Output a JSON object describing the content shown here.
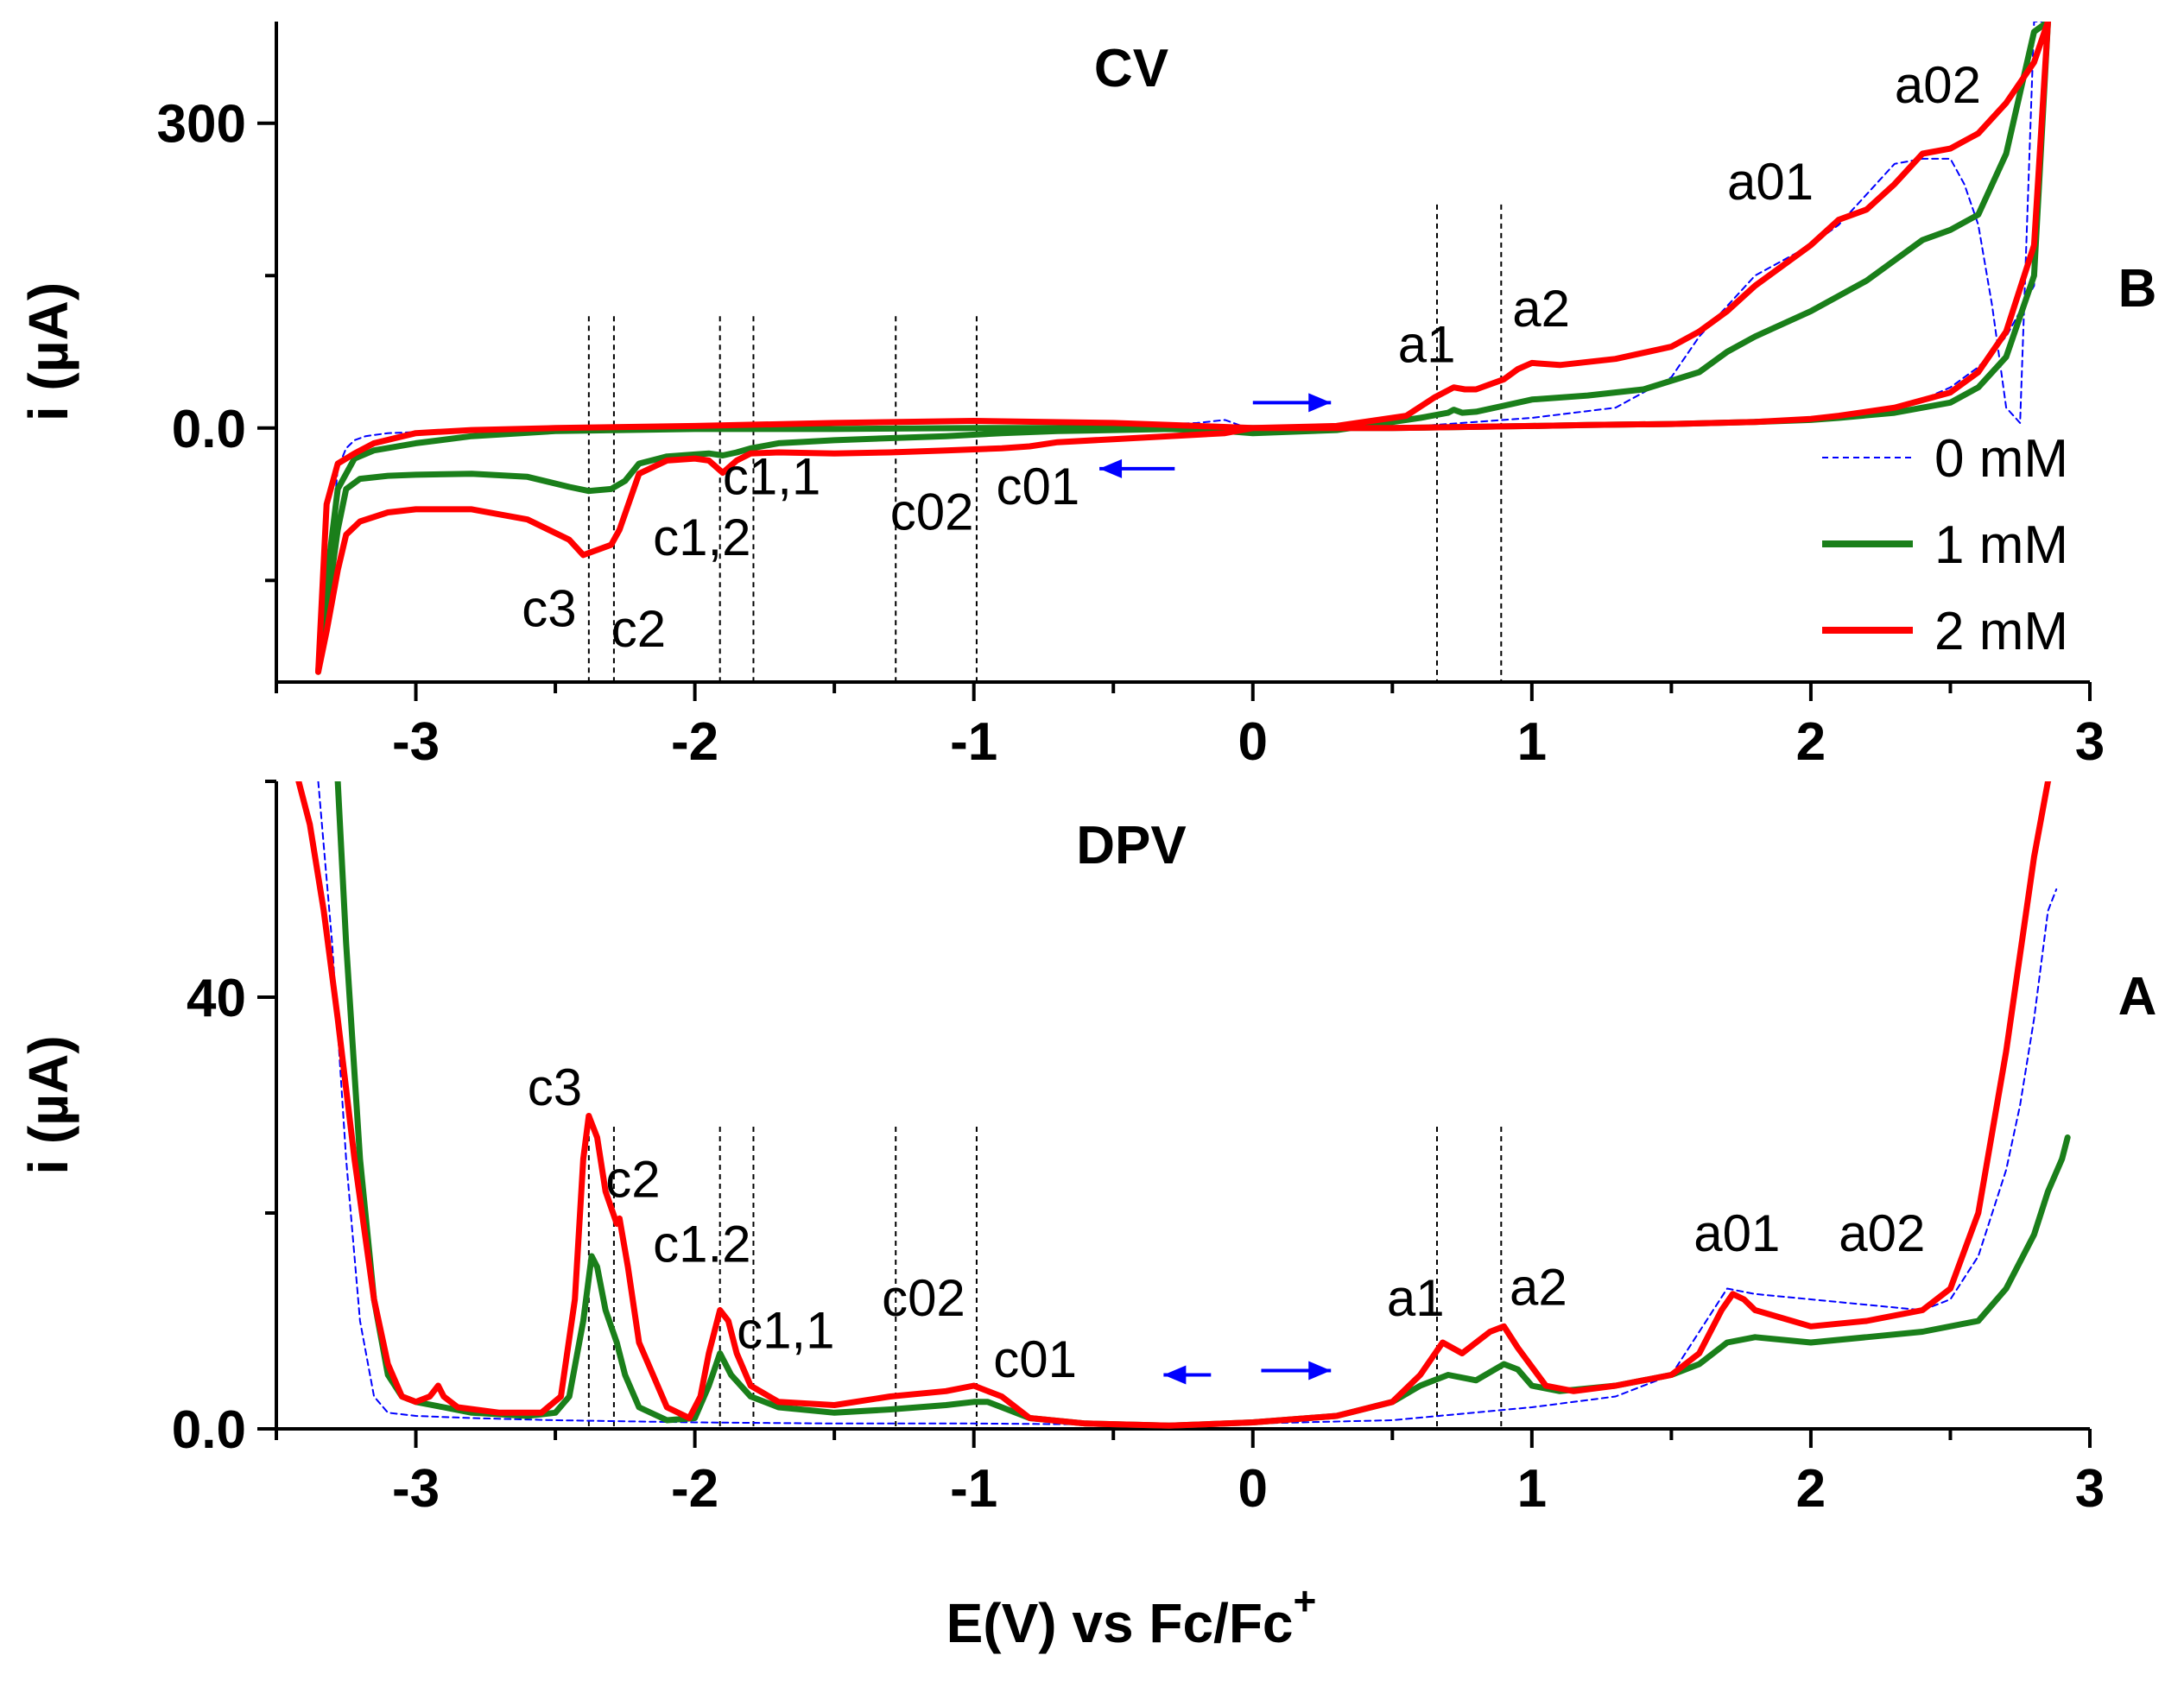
{
  "chart_data": [
    {
      "type": "line",
      "panel_title": "CV",
      "panel_letter": "B",
      "xlabel": "E(V) vs Fc/Fc",
      "xlabel_sup": "+",
      "ylabel": "i (µA)",
      "xlim": [
        -3.5,
        3.0
      ],
      "ylim": [
        -250,
        400
      ],
      "x_ticks": [
        -3,
        -2,
        -1,
        0,
        1,
        2,
        3
      ],
      "x_tick_labels": [
        "-3",
        "-2",
        "-1",
        "0",
        "1",
        "2",
        "3"
      ],
      "y_ticks": [
        0,
        300
      ],
      "y_tick_labels": [
        "0.0",
        "300"
      ],
      "grid": false,
      "legend": {
        "placement": "right",
        "entries": [
          {
            "name": "0 mM",
            "color": "#0000ff",
            "style": "dashed"
          },
          {
            "name": "1 mM",
            "color": "#1a7f1a",
            "style": "solid"
          },
          {
            "name": "2 mM",
            "color": "#ff0000",
            "style": "solid"
          }
        ]
      },
      "annotations": [
        {
          "text": "a02",
          "x": 2.3,
          "y": 320
        },
        {
          "text": "a01",
          "x": 1.7,
          "y": 225
        },
        {
          "text": "a2",
          "x": 0.93,
          "y": 100
        },
        {
          "text": "a1",
          "x": 0.52,
          "y": 65
        },
        {
          "text": "c1,1",
          "x": -1.9,
          "y": -65
        },
        {
          "text": "c02",
          "x": -1.3,
          "y": -100
        },
        {
          "text": "c01",
          "x": -0.92,
          "y": -75
        },
        {
          "text": "c1,2",
          "x": -2.15,
          "y": -125
        },
        {
          "text": "c3",
          "x": -2.62,
          "y": -195
        },
        {
          "text": "c2",
          "x": -2.3,
          "y": -215
        }
      ],
      "series": [
        {
          "name": "0 mM",
          "color": "#0000ff",
          "style": "dashed",
          "x": [
            -3.35,
            -3.33,
            -3.3,
            -3.28,
            -3.25,
            -3.22,
            -3.18,
            -3.1,
            -3.0,
            -2.8,
            -2.5,
            -2.0,
            -1.5,
            -1.0,
            -0.5,
            -0.2,
            -0.1,
            0.0,
            0.5,
            1.0,
            1.3,
            1.5,
            1.6,
            1.7,
            1.8,
            1.9,
            2.0,
            2.1,
            2.2,
            2.3,
            2.4,
            2.5,
            2.55,
            2.6,
            2.65,
            2.7,
            2.75,
            2.8,
            2.85,
            2.8,
            2.7,
            2.6,
            2.5,
            2.4,
            2.3,
            2.2,
            2.1,
            2.0,
            1.8,
            1.6,
            1.4,
            1.2,
            1.0,
            0.8,
            0.6,
            0.4,
            0.2,
            0.0,
            -0.1
          ],
          "y": [
            -240,
            -200,
            -100,
            -40,
            -20,
            -12,
            -8,
            -5,
            -4,
            -3,
            -3,
            -2,
            -1,
            0,
            2,
            5,
            8,
            -2,
            0,
            10,
            20,
            50,
            90,
            120,
            150,
            165,
            180,
            200,
            230,
            260,
            265,
            265,
            240,
            200,
            120,
            20,
            5,
            400,
            400,
            140,
            90,
            60,
            40,
            28,
            20,
            15,
            12,
            10,
            8,
            6,
            5,
            4,
            3,
            2,
            2,
            1,
            1,
            0,
            0
          ]
        },
        {
          "name": "1 mM",
          "color": "#1a7f1a",
          "style": "solid",
          "x": [
            -3.35,
            -3.32,
            -3.28,
            -3.25,
            -3.2,
            -3.1,
            -3.0,
            -2.8,
            -2.6,
            -2.45,
            -2.38,
            -2.3,
            -2.25,
            -2.2,
            -2.1,
            -2.0,
            -1.95,
            -1.9,
            -1.85,
            -1.8,
            -1.7,
            -1.5,
            -1.3,
            -1.1,
            -0.9,
            -0.7,
            -0.5,
            -0.3,
            -0.1,
            -0.1,
            0.0,
            0.3,
            0.6,
            0.7,
            0.72,
            0.75,
            0.8,
            0.9,
            1.0,
            1.2,
            1.4,
            1.6,
            1.7,
            1.8,
            2.0,
            2.2,
            2.3,
            2.4,
            2.5,
            2.6,
            2.7,
            2.75,
            2.8,
            2.85,
            2.8,
            2.7,
            2.6,
            2.5,
            2.3,
            2.1,
            2.0,
            1.8,
            1.5,
            1.2,
            1.0,
            0.5,
            0.0,
            -0.2,
            -0.5,
            -1.0,
            -1.5,
            -2.0,
            -2.5,
            -2.8,
            -3.0,
            -3.15,
            -3.22,
            -3.28,
            -3.32,
            -3.35
          ],
          "y": [
            -240,
            -180,
            -100,
            -60,
            -50,
            -47,
            -46,
            -45,
            -48,
            -58,
            -62,
            -60,
            -52,
            -35,
            -28,
            -26,
            -25,
            -27,
            -24,
            -20,
            -15,
            -12,
            -10,
            -8,
            -5,
            -3,
            -2,
            -1,
            -3,
            -3,
            -5,
            -2,
            10,
            15,
            18,
            15,
            16,
            22,
            28,
            32,
            38,
            55,
            75,
            90,
            115,
            145,
            165,
            185,
            195,
            210,
            270,
            330,
            390,
            400,
            150,
            70,
            40,
            25,
            15,
            10,
            8,
            6,
            4,
            3,
            2,
            0,
            0,
            0,
            0,
            0,
            -1,
            -1,
            -3,
            -8,
            -15,
            -22,
            -30,
            -60,
            -150,
            -240
          ]
        },
        {
          "name": "2 mM",
          "color": "#ff0000",
          "style": "solid",
          "x": [
            -3.35,
            -3.32,
            -3.28,
            -3.25,
            -3.2,
            -3.1,
            -3.0,
            -2.8,
            -2.6,
            -2.45,
            -2.4,
            -2.35,
            -2.3,
            -2.27,
            -2.2,
            -2.1,
            -2.0,
            -1.95,
            -1.9,
            -1.85,
            -1.8,
            -1.7,
            -1.5,
            -1.3,
            -1.1,
            -0.9,
            -0.8,
            -0.7,
            -0.5,
            -0.3,
            -0.1,
            0.0,
            0.3,
            0.55,
            0.65,
            0.72,
            0.76,
            0.8,
            0.9,
            0.95,
            1.0,
            1.1,
            1.3,
            1.5,
            1.6,
            1.7,
            1.8,
            2.0,
            2.1,
            2.2,
            2.3,
            2.4,
            2.5,
            2.6,
            2.7,
            2.8,
            2.85,
            2.8,
            2.7,
            2.6,
            2.5,
            2.3,
            2.1,
            2.0,
            1.8,
            1.5,
            1.2,
            1.0,
            0.5,
            0.0,
            -0.2,
            -0.5,
            -1.0,
            -1.5,
            -2.0,
            -2.5,
            -2.8,
            -3.0,
            -3.15,
            -3.22,
            -3.28,
            -3.32,
            -3.35
          ],
          "y": [
            -240,
            -200,
            -140,
            -105,
            -92,
            -83,
            -80,
            -80,
            -90,
            -110,
            -125,
            -120,
            -115,
            -100,
            -45,
            -32,
            -30,
            -32,
            -44,
            -32,
            -25,
            -24,
            -25,
            -24,
            -22,
            -20,
            -18,
            -14,
            -11,
            -8,
            -5,
            0,
            2,
            12,
            30,
            40,
            38,
            38,
            48,
            58,
            64,
            62,
            68,
            80,
            95,
            115,
            140,
            180,
            205,
            215,
            240,
            270,
            275,
            290,
            320,
            360,
            400,
            180,
            95,
            55,
            35,
            20,
            12,
            9,
            6,
            4,
            3,
            2,
            0,
            0,
            2,
            5,
            7,
            5,
            2,
            0,
            -2,
            -5,
            -15,
            -25,
            -35,
            -75,
            -240
          ]
        }
      ],
      "arrows": [
        {
          "from": [
            0.0,
            25
          ],
          "to": [
            0.28,
            25
          ],
          "color": "#0000ff"
        },
        {
          "from": [
            -0.28,
            -40
          ],
          "to": [
            -0.55,
            -40
          ],
          "color": "#0000ff"
        }
      ],
      "vlines_x": [
        -2.38,
        -2.29,
        -1.91,
        -1.79,
        -1.28,
        -0.99,
        0.66,
        0.89
      ]
    },
    {
      "type": "line",
      "panel_title": "DPV",
      "panel_letter": "A",
      "xlabel": "E(V) vs Fc/Fc",
      "xlabel_sup": "+",
      "ylabel": "i (µA)",
      "xlim": [
        -3.5,
        3.0
      ],
      "ylim": [
        0,
        60
      ],
      "x_ticks": [
        -3,
        -2,
        -1,
        0,
        1,
        2,
        3
      ],
      "x_tick_labels": [
        "-3",
        "-2",
        "-1",
        "0",
        "1",
        "2",
        "3"
      ],
      "y_ticks": [
        0,
        40
      ],
      "y_tick_labels": [
        "0.0",
        "40"
      ],
      "grid": false,
      "annotations": [
        {
          "text": "c3",
          "x": -2.6,
          "y": 30
        },
        {
          "text": "c2",
          "x": -2.32,
          "y": 21.5
        },
        {
          "text": "c1.2",
          "x": -2.15,
          "y": 15.5
        },
        {
          "text": "c1,1",
          "x": -1.85,
          "y": 7.5
        },
        {
          "text": "c02",
          "x": -1.33,
          "y": 10.5
        },
        {
          "text": "c01",
          "x": -0.93,
          "y": 4.8
        },
        {
          "text": "a1",
          "x": 0.48,
          "y": 10.5
        },
        {
          "text": "a2",
          "x": 0.92,
          "y": 11.5
        },
        {
          "text": "a01",
          "x": 1.58,
          "y": 16.5
        },
        {
          "text": "a02",
          "x": 2.1,
          "y": 16.5
        }
      ],
      "series": [
        {
          "name": "0 mM",
          "color": "#0000ff",
          "style": "dashed",
          "x": [
            -3.35,
            -3.3,
            -3.25,
            -3.2,
            -3.15,
            -3.1,
            -3.0,
            -2.8,
            -2.5,
            -2.0,
            -1.5,
            -1.0,
            -0.5,
            0.0,
            0.5,
            1.0,
            1.3,
            1.5,
            1.6,
            1.7,
            1.8,
            2.0,
            2.2,
            2.4,
            2.5,
            2.6,
            2.7,
            2.75,
            2.8,
            2.85,
            2.88
          ],
          "y": [
            60,
            45,
            25,
            10,
            3,
            1.5,
            1.2,
            1.0,
            0.8,
            0.6,
            0.5,
            0.5,
            0.4,
            0.5,
            0.8,
            2,
            3,
            5,
            9,
            13,
            12.5,
            12,
            11.5,
            11,
            12,
            16,
            24,
            30,
            38,
            48,
            50
          ]
        },
        {
          "name": "1 mM",
          "color": "#1a7f1a",
          "style": "solid",
          "x": [
            -3.28,
            -3.25,
            -3.2,
            -3.15,
            -3.1,
            -3.05,
            -3.0,
            -2.9,
            -2.8,
            -2.6,
            -2.5,
            -2.45,
            -2.4,
            -2.37,
            -2.35,
            -2.32,
            -2.28,
            -2.25,
            -2.2,
            -2.1,
            -2.0,
            -1.95,
            -1.91,
            -1.87,
            -1.8,
            -1.7,
            -1.5,
            -1.3,
            -1.1,
            -1.0,
            -0.95,
            -0.9,
            -0.8,
            -0.6,
            -0.3,
            0.0,
            0.3,
            0.5,
            0.6,
            0.7,
            0.8,
            0.9,
            0.95,
            1.0,
            1.1,
            1.3,
            1.5,
            1.6,
            1.7,
            1.8,
            2.0,
            2.2,
            2.4,
            2.6,
            2.7,
            2.8,
            2.85,
            2.9,
            2.92
          ],
          "y": [
            60,
            45,
            25,
            12,
            5,
            3,
            2.5,
            2,
            1.5,
            1.2,
            1.5,
            3,
            10,
            16,
            15,
            11,
            8,
            5,
            2,
            0.8,
            1,
            4,
            7,
            5,
            3,
            2,
            1.5,
            1.8,
            2.2,
            2.5,
            2.5,
            2,
            1,
            0.5,
            0.3,
            0.6,
            1.2,
            2.5,
            4,
            5,
            4.5,
            6,
            5.5,
            4,
            3.5,
            4,
            5,
            6,
            8,
            8.5,
            8,
            8.5,
            9,
            10,
            13,
            18,
            22,
            25,
            27
          ]
        },
        {
          "name": "2 mM",
          "color": "#ff0000",
          "style": "solid",
          "x": [
            -3.42,
            -3.38,
            -3.33,
            -3.28,
            -3.22,
            -3.15,
            -3.1,
            -3.05,
            -3.0,
            -2.95,
            -2.92,
            -2.9,
            -2.85,
            -2.7,
            -2.55,
            -2.48,
            -2.43,
            -2.4,
            -2.38,
            -2.35,
            -2.32,
            -2.28,
            -2.27,
            -2.24,
            -2.2,
            -2.1,
            -2.02,
            -1.98,
            -1.95,
            -1.91,
            -1.88,
            -1.85,
            -1.8,
            -1.7,
            -1.5,
            -1.3,
            -1.1,
            -1.0,
            -0.95,
            -0.9,
            -0.8,
            -0.6,
            -0.3,
            0.0,
            0.3,
            0.5,
            0.6,
            0.68,
            0.75,
            0.8,
            0.85,
            0.9,
            0.95,
            1.05,
            1.15,
            1.3,
            1.5,
            1.6,
            1.68,
            1.72,
            1.76,
            1.8,
            2.0,
            2.2,
            2.4,
            2.5,
            2.6,
            2.7,
            2.8,
            2.85,
            2.88
          ],
          "y": [
            60,
            56,
            48,
            38,
            25,
            12,
            6,
            3,
            2.5,
            3,
            4,
            3,
            2,
            1.5,
            1.5,
            3,
            12,
            25,
            29,
            27,
            22,
            19,
            19.5,
            15,
            8,
            2,
            1,
            3,
            7,
            11,
            10,
            7,
            4,
            2.5,
            2.2,
            3,
            3.5,
            4,
            3.5,
            3,
            1,
            0.5,
            0.3,
            0.6,
            1.2,
            2.5,
            5,
            8,
            7,
            8,
            9,
            9.5,
            7.5,
            4,
            3.5,
            4,
            5,
            7,
            11,
            12.5,
            12,
            11,
            9.5,
            10,
            11,
            13,
            20,
            35,
            53,
            60,
            62
          ]
        }
      ],
      "arrows": [
        {
          "from": [
            0.03,
            5.4
          ],
          "to": [
            0.28,
            5.4
          ],
          "color": "#0000ff"
        },
        {
          "from": [
            -0.15,
            5.0
          ],
          "to": [
            -0.32,
            5.0
          ],
          "color": "#0000ff"
        }
      ],
      "vlines_x": [
        -2.38,
        -2.29,
        -1.91,
        -1.79,
        -1.28,
        -0.99,
        0.66,
        0.89
      ]
    }
  ]
}
